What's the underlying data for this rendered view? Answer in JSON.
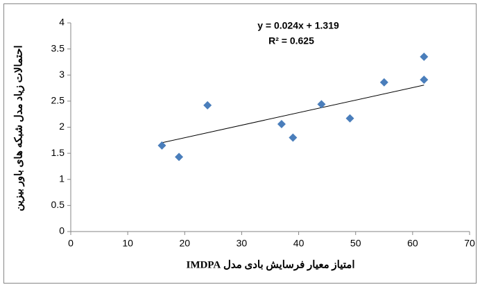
{
  "chart_data": {
    "type": "scatter",
    "x_label": "امتیاز معیار فرسایش بادی مدل IMDPA",
    "y_label": "احتمالات زیاد مدل شبکه های باور بیزین",
    "x": [
      16,
      19,
      24,
      37,
      39,
      44,
      49,
      55,
      62,
      62
    ],
    "values": [
      1.65,
      1.43,
      2.42,
      2.06,
      1.8,
      2.44,
      2.17,
      2.86,
      3.35,
      2.91
    ],
    "color": "#4a7ebb",
    "xlim": [
      0,
      70
    ],
    "xticks": [
      0,
      10,
      20,
      30,
      40,
      50,
      60,
      70
    ],
    "ylim": [
      0,
      4
    ],
    "yticks": [
      0,
      0.5,
      1,
      1.5,
      2,
      2.5,
      3,
      3.5,
      4
    ],
    "grid": false,
    "trendline": {
      "equation": "y = 0.024x + 1.319",
      "slope": 0.024,
      "intercept": 1.319,
      "r2_label": "R² = 0.625",
      "r2": 0.625
    }
  }
}
